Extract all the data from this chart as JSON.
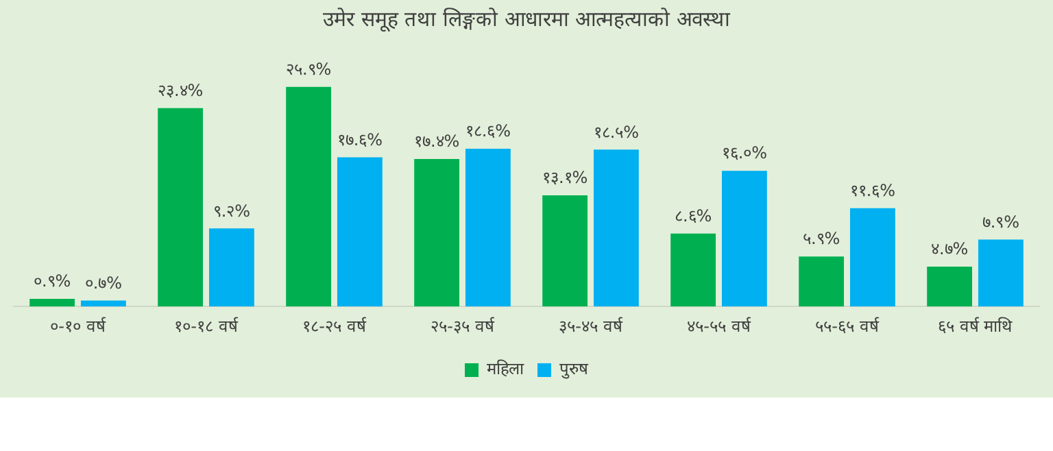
{
  "chart_data": {
    "type": "bar",
    "title": "उमेर समूह तथा लिङ्गको आधारमा आत्महत्याको अवस्था",
    "categories": [
      "०-१० वर्ष",
      "१०-१८ वर्ष",
      "१८-२५ वर्ष",
      "२५-३५ वर्ष",
      "३५-४५ वर्ष",
      "४५-५५ वर्ष",
      "५५-६५ वर्ष",
      "६५ वर्ष माथि"
    ],
    "series": [
      {
        "name": "महिला",
        "color": "#00b050",
        "values": [
          0.9,
          23.4,
          25.9,
          17.4,
          13.1,
          8.6,
          5.9,
          4.7
        ],
        "value_labels": [
          "०.९%",
          "२३.४%",
          "२५.९%",
          "१७.४%",
          "१३.१%",
          "८.६%",
          "५.९%",
          "४.७%"
        ]
      },
      {
        "name": "पुरुष",
        "color": "#00b0f0",
        "values": [
          0.7,
          9.2,
          17.6,
          18.6,
          18.5,
          16.0,
          11.6,
          7.9
        ],
        "value_labels": [
          "०.७%",
          "९.२%",
          "१७.६%",
          "१८.६%",
          "१८.५%",
          "१६.०%",
          "११.६%",
          "७.९%"
        ]
      }
    ],
    "legend": "bottom",
    "grid": false,
    "tick_labels": "x"
  }
}
